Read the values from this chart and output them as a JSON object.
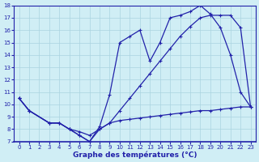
{
  "line1_x": [
    0,
    1,
    3,
    4,
    5,
    6,
    7,
    8,
    9,
    10,
    11,
    12,
    13,
    14,
    15,
    16,
    17,
    18,
    19,
    20,
    21,
    22,
    23
  ],
  "line1_y": [
    10.5,
    9.5,
    8.5,
    8.5,
    8.0,
    7.5,
    7.0,
    8.2,
    10.8,
    15.0,
    15.5,
    16.0,
    13.5,
    15.0,
    17.0,
    17.2,
    17.5,
    18.0,
    17.3,
    16.2,
    14.0,
    11.0,
    9.8
  ],
  "line2_x": [
    0,
    1,
    3,
    4,
    5,
    6,
    7,
    8,
    9,
    10,
    11,
    12,
    13,
    14,
    15,
    16,
    17,
    18,
    19,
    20,
    21,
    22,
    23
  ],
  "line2_y": [
    10.5,
    9.5,
    8.5,
    8.5,
    8.0,
    7.8,
    7.5,
    8.0,
    8.5,
    9.5,
    10.5,
    11.5,
    12.5,
    13.5,
    14.5,
    15.5,
    16.3,
    17.0,
    17.2,
    17.2,
    17.2,
    16.2,
    9.8
  ],
  "line3_x": [
    0,
    1,
    3,
    4,
    5,
    6,
    7,
    8,
    9,
    10,
    11,
    12,
    13,
    14,
    15,
    16,
    17,
    18,
    19,
    20,
    21,
    22,
    23
  ],
  "line3_y": [
    10.5,
    9.5,
    8.5,
    8.5,
    8.0,
    7.5,
    7.0,
    8.0,
    8.5,
    8.7,
    8.8,
    8.9,
    9.0,
    9.1,
    9.2,
    9.3,
    9.4,
    9.5,
    9.5,
    9.6,
    9.7,
    9.8,
    9.8
  ],
  "line_color": "#2222aa",
  "bg_color": "#d0eef5",
  "grid_color": "#aad4e0",
  "xlabel": "Graphe des températures (°C)",
  "ylim": [
    7,
    18
  ],
  "xlim": [
    -0.5,
    23.5
  ],
  "yticks": [
    7,
    8,
    9,
    10,
    11,
    12,
    13,
    14,
    15,
    16,
    17,
    18
  ],
  "xticks": [
    0,
    1,
    2,
    3,
    4,
    5,
    6,
    7,
    8,
    9,
    10,
    11,
    12,
    13,
    14,
    15,
    16,
    17,
    18,
    19,
    20,
    21,
    22,
    23
  ]
}
